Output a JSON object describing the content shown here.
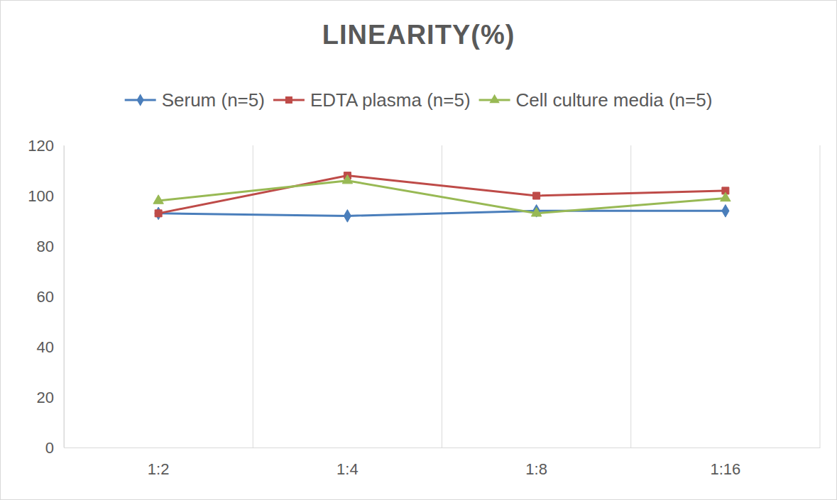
{
  "chart_data": {
    "type": "line",
    "title": "LINEARITY(%)",
    "categories": [
      "1:2",
      "1:4",
      "1:8",
      "1:16"
    ],
    "series": [
      {
        "name": "Serum (n=5)",
        "color": "#4a7ebb",
        "marker": "diamond",
        "values": [
          93,
          92,
          94,
          94
        ]
      },
      {
        "name": "EDTA plasma (n=5)",
        "color": "#be4b48",
        "marker": "square",
        "values": [
          93,
          108,
          100,
          102
        ]
      },
      {
        "name": "Cell culture media (n=5)",
        "color": "#98b954",
        "marker": "triangle",
        "values": [
          98,
          106,
          93,
          99
        ]
      }
    ],
    "ylim": [
      0,
      120
    ],
    "yticks": [
      0,
      20,
      40,
      60,
      80,
      100,
      120
    ],
    "grid": true,
    "legend": "top"
  }
}
